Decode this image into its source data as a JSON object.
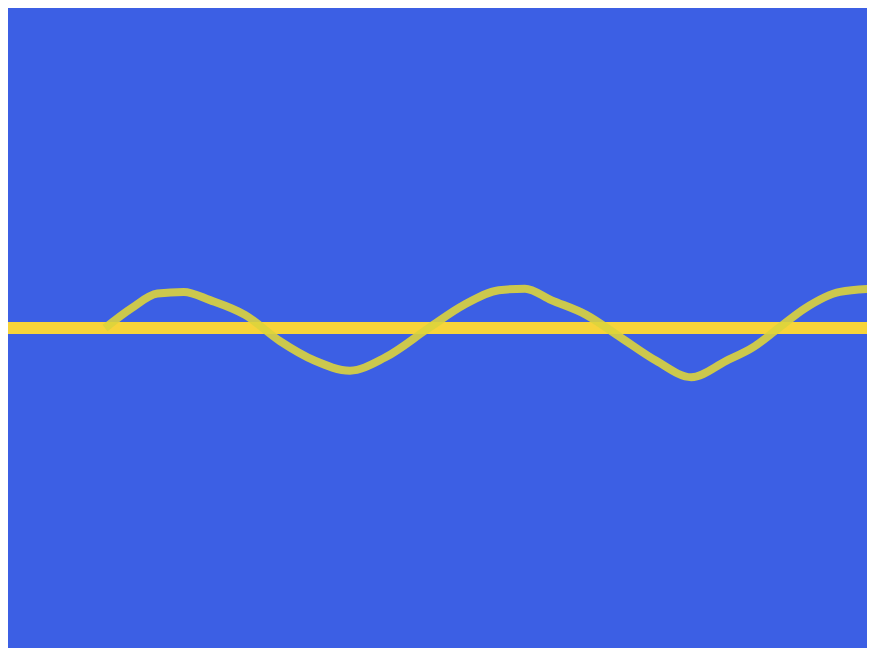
{
  "chart_data": {
    "type": "line",
    "x": [
      0,
      4,
      8,
      12,
      15,
      18,
      21,
      24,
      28,
      32,
      36,
      40,
      44,
      49,
      53,
      57,
      60,
      63,
      67,
      71,
      75,
      79,
      83,
      86,
      89,
      92,
      96,
      100
    ],
    "series": [
      {
        "color": "#f7d43a",
        "values": [
          0,
          0,
          0,
          0,
          0,
          0,
          0,
          0,
          0,
          0,
          0,
          0,
          0,
          0,
          0,
          0,
          0,
          0,
          0,
          0,
          0,
          0,
          0,
          0,
          0,
          0,
          0,
          0
        ]
      },
      {
        "color": "#dcd43c",
        "values": [
          null,
          null,
          null,
          0.0,
          0.06,
          0.105,
          0.11,
          0.085,
          0.04,
          -0.04,
          -0.1,
          -0.13,
          -0.09,
          0.0,
          0.07,
          0.115,
          0.12,
          0.085,
          0.04,
          -0.03,
          -0.1,
          -0.15,
          -0.1,
          -0.06,
          0.0,
          0.06,
          0.11,
          0.12
        ]
      }
    ],
    "xlim": [
      0,
      100
    ],
    "ylim": [
      -1,
      1
    ],
    "xticks": [
      0,
      100
    ],
    "yticks": [
      -1,
      1
    ],
    "tick_labels": false,
    "grid": false
  }
}
